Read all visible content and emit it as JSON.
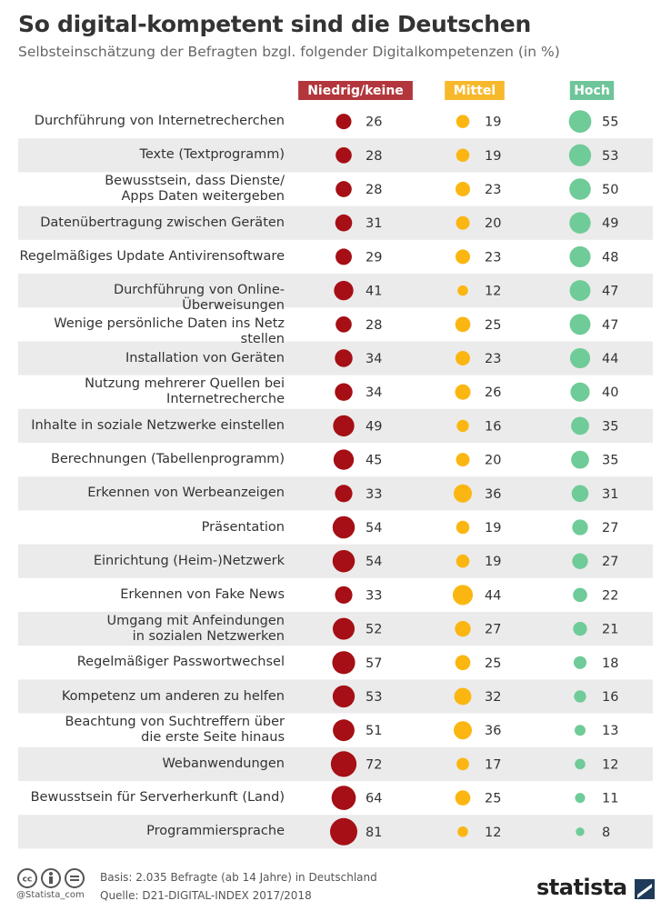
{
  "chart_data": {
    "type": "bubble-table",
    "title": "So digital-kompetent sind die Deutschen",
    "subtitle": "Selbsteinschätzung der Befragten bzgl. folgender Digitalkompetenzen (in %)",
    "categories": [
      "Durchführung von Internetrecherchen",
      "Texte (Textprogramm)",
      "Bewusstsein, dass Dienste/\nApps Daten weitergeben",
      "Datenübertragung zwischen Geräten",
      "Regelmäßiges Update Antivirensoftware",
      "Durchführung von Online-Überweisungen",
      "Wenige persönliche Daten ins Netz stellen",
      "Installation von Geräten",
      "Nutzung mehrerer Quellen bei\nInternetrecherche",
      "Inhalte in soziale Netzwerke einstellen",
      "Berechnungen (Tabellenprogramm)",
      "Erkennen von Werbeanzeigen",
      "Präsentation",
      "Einrichtung (Heim-)Netzwerk",
      "Erkennen von Fake News",
      "Umgang mit Anfeindungen\nin sozialen Netzwerken",
      "Regelmäßiger Passwortwechsel",
      "Kompetenz um anderen zu helfen",
      "Beachtung von Suchtreffern über\ndie erste Seite hinaus",
      "Webanwendungen",
      "Bewusstsein für Serverherkunft (Land)",
      "Programmiersprache"
    ],
    "series": [
      {
        "name": "Niedrig/keine",
        "color": "#a50f15",
        "legend_color": "#b2363b",
        "values": [
          26,
          28,
          28,
          31,
          29,
          41,
          28,
          34,
          34,
          49,
          45,
          33,
          54,
          54,
          33,
          52,
          57,
          53,
          51,
          72,
          64,
          81
        ]
      },
      {
        "name": "Mittel",
        "color": "#fbb612",
        "legend_color": "#f7b92c",
        "values": [
          19,
          19,
          23,
          20,
          23,
          12,
          25,
          23,
          26,
          16,
          20,
          36,
          19,
          19,
          44,
          27,
          25,
          32,
          36,
          17,
          25,
          12
        ]
      },
      {
        "name": "Hoch",
        "color": "#6fcb97",
        "legend_color": "#6fc59a",
        "values": [
          55,
          53,
          50,
          49,
          48,
          47,
          47,
          44,
          40,
          35,
          35,
          31,
          27,
          27,
          22,
          21,
          18,
          16,
          13,
          12,
          11,
          8
        ]
      }
    ],
    "source": {
      "basis": "Basis: 2.035 Befragte (ab 14 Jahre) in Deutschland",
      "quelle": "Quelle: D21-DIGITAL-INDEX 2017/2018",
      "handle": "@Statista_com",
      "brand": "statista"
    }
  }
}
